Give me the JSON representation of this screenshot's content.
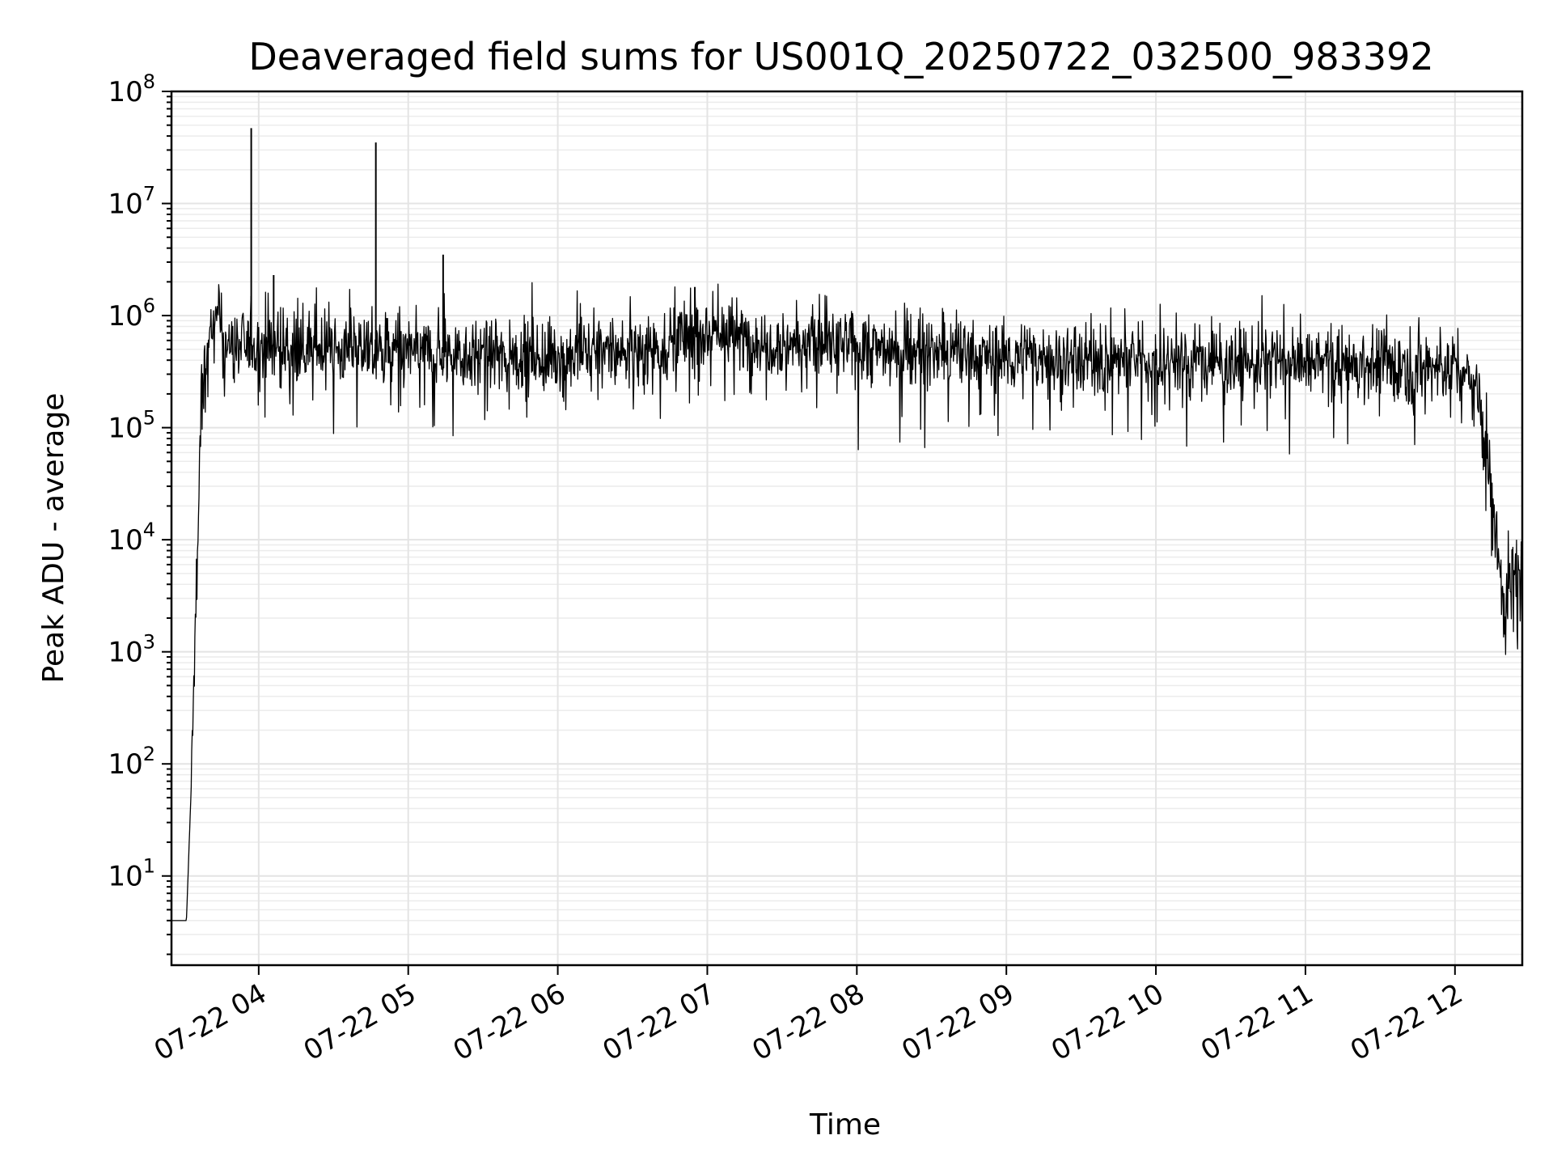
{
  "chart_data": {
    "type": "line",
    "title": "Deaveraged field sums for US001Q_20250722_032500_983392",
    "xlabel": "Time",
    "ylabel": "Peak ADU - average",
    "yscale": "log",
    "xlim": [
      "2025-07-22 03:25",
      "2025-07-22 12:27"
    ],
    "ylim": [
      1.6,
      100000000
    ],
    "grid": true,
    "grid_minor": true,
    "x_ticks": [
      {
        "label": "07-22 04",
        "time": "2025-07-22 04:00"
      },
      {
        "label": "07-22 05",
        "time": "2025-07-22 05:00"
      },
      {
        "label": "07-22 06",
        "time": "2025-07-22 06:00"
      },
      {
        "label": "07-22 07",
        "time": "2025-07-22 07:00"
      },
      {
        "label": "07-22 08",
        "time": "2025-07-22 08:00"
      },
      {
        "label": "07-22 09",
        "time": "2025-07-22 09:00"
      },
      {
        "label": "07-22 10",
        "time": "2025-07-22 10:00"
      },
      {
        "label": "07-22 11",
        "time": "2025-07-22 11:00"
      },
      {
        "label": "07-22 12",
        "time": "2025-07-22 12:00"
      }
    ],
    "y_ticks": [
      {
        "base": "10",
        "exp": "1",
        "value": 10
      },
      {
        "base": "10",
        "exp": "2",
        "value": 100
      },
      {
        "base": "10",
        "exp": "3",
        "value": 1000
      },
      {
        "base": "10",
        "exp": "4",
        "value": 10000
      },
      {
        "base": "10",
        "exp": "5",
        "value": 100000
      },
      {
        "base": "10",
        "exp": "6",
        "value": 1000000
      },
      {
        "base": "10",
        "exp": "7",
        "value": 10000000
      },
      {
        "base": "10",
        "exp": "8",
        "value": 100000000
      }
    ],
    "series": [
      {
        "color": "#000000",
        "profile": [
          [
            "2025-07-22 03:25",
            4
          ],
          [
            "2025-07-22 03:31",
            4
          ],
          [
            "2025-07-22 03:33",
            70
          ],
          [
            "2025-07-22 03:35",
            3500
          ],
          [
            "2025-07-22 03:37",
            150000
          ],
          [
            "2025-07-22 03:40",
            600000
          ],
          [
            "2025-07-22 03:43",
            900000
          ],
          [
            "2025-07-22 03:47",
            550000
          ],
          [
            "2025-07-22 05:00",
            480000
          ],
          [
            "2025-07-22 06:00",
            420000
          ],
          [
            "2025-07-22 06:40",
            520000
          ],
          [
            "2025-07-22 07:00",
            750000
          ],
          [
            "2025-07-22 07:20",
            600000
          ],
          [
            "2025-07-22 08:00",
            520000
          ],
          [
            "2025-07-22 09:00",
            420000
          ],
          [
            "2025-07-22 10:00",
            400000
          ],
          [
            "2025-07-22 11:00",
            380000
          ],
          [
            "2025-07-22 12:00",
            350000
          ],
          [
            "2025-07-22 12:08",
            250000
          ],
          [
            "2025-07-22 12:12",
            80000
          ],
          [
            "2025-07-22 12:17",
            8000
          ],
          [
            "2025-07-22 12:20",
            3000
          ],
          [
            "2025-07-22 12:27",
            5000
          ]
        ],
        "spikes": [
          [
            "2025-07-22 03:57",
            47000000
          ],
          [
            "2025-07-22 04:06",
            2300000
          ],
          [
            "2025-07-22 04:47",
            35000000
          ],
          [
            "2025-07-22 05:14",
            3500000
          ],
          [
            "2025-07-22 06:55",
            1800000
          ]
        ]
      }
    ]
  }
}
